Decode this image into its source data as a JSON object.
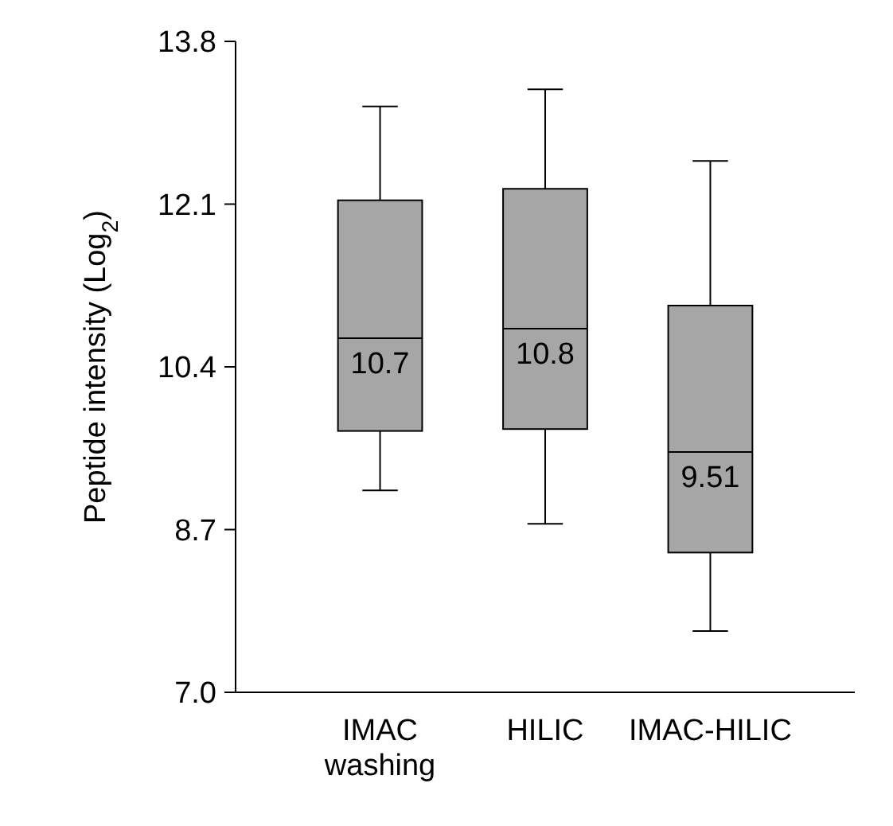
{
  "chart_data": {
    "type": "box",
    "ylabel": "Peptide intensity (Log$_{2}$)",
    "categories": [
      "IMAC washing",
      "HILIC",
      "IMAC-HILIC"
    ],
    "boxes": [
      {
        "low": 9.11,
        "q1": 9.73,
        "median": 10.7,
        "q3": 12.14,
        "high": 13.12
      },
      {
        "low": 8.76,
        "q1": 9.75,
        "median": 10.8,
        "q3": 12.26,
        "high": 13.3
      },
      {
        "low": 7.64,
        "q1": 8.46,
        "median": 9.51,
        "q3": 11.04,
        "high": 12.55
      }
    ],
    "color": "#a6a6a6",
    "value_labels": [
      "10.7",
      "10.8",
      "9.51"
    ],
    "ylim": [
      7.0,
      13.8
    ],
    "yticks": [
      {
        "value": 7.0,
        "label": "7.0"
      },
      {
        "value": 8.7,
        "label": "8.7"
      },
      {
        "value": 10.4,
        "label": "10.4"
      },
      {
        "value": 12.1,
        "label": "12.1"
      },
      {
        "value": 13.8,
        "label": "13.8"
      }
    ],
    "grid": false
  }
}
